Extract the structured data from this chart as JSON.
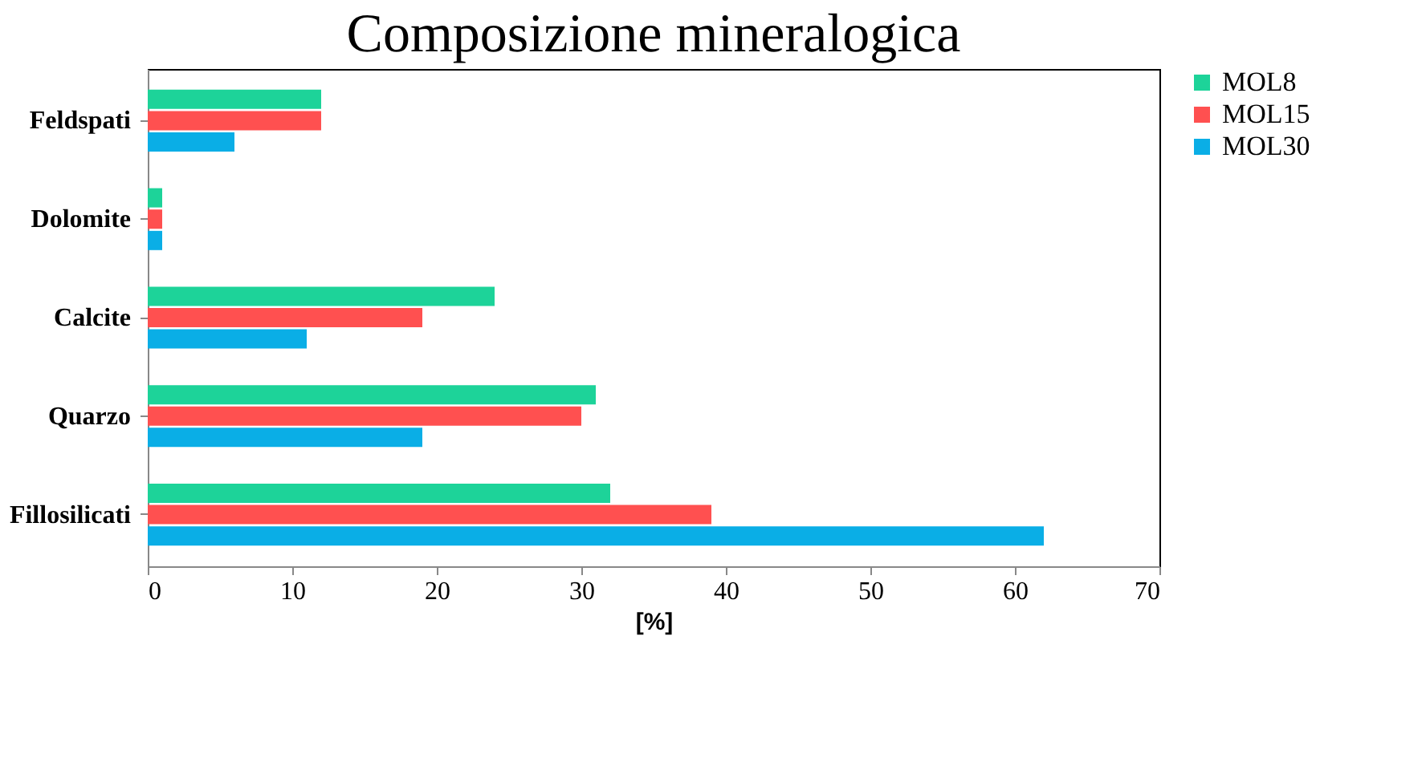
{
  "chart_data": {
    "type": "bar",
    "orientation": "horizontal",
    "title": "Composizione mineralogica",
    "xlabel": "[%]",
    "categories": [
      "Feldspati",
      "Dolomite",
      "Calcite",
      "Quarzo",
      "Fillosilicati"
    ],
    "series": [
      {
        "name": "MOL8",
        "color": "#1dd399",
        "values": [
          12,
          1,
          24,
          31,
          32
        ]
      },
      {
        "name": "MOL15",
        "color": "#ff5050",
        "values": [
          12,
          1,
          19,
          30,
          39
        ]
      },
      {
        "name": "MOL30",
        "color": "#0aaee6",
        "values": [
          6,
          1,
          11,
          19,
          62
        ]
      }
    ],
    "xlim": [
      0,
      70
    ],
    "xticks": [
      0,
      10,
      20,
      30,
      40,
      50,
      60,
      70
    ],
    "grid": false,
    "legend": "right"
  }
}
